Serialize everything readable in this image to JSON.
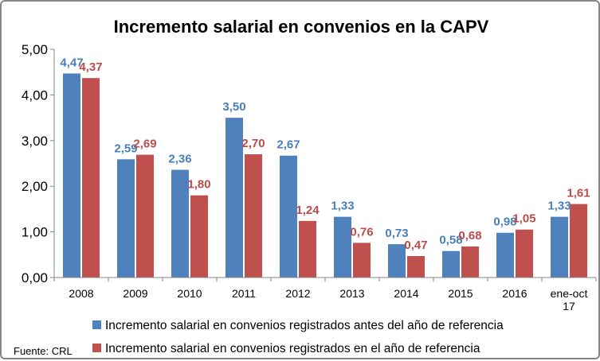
{
  "chart_data": {
    "type": "bar",
    "title": "Incremento salarial en convenios en la CAPV",
    "categories": [
      "2008",
      "2009",
      "2010",
      "2011",
      "2012",
      "2013",
      "2014",
      "2015",
      "2016",
      "ene-oct 17"
    ],
    "category_lines": [
      [
        "2008"
      ],
      [
        "2009"
      ],
      [
        "2010"
      ],
      [
        "2011"
      ],
      [
        "2012"
      ],
      [
        "2013"
      ],
      [
        "2014"
      ],
      [
        "2015"
      ],
      [
        "2016"
      ],
      [
        "ene-oct",
        "17"
      ]
    ],
    "series": [
      {
        "name": "Incremento salarial en convenios registrados antes del año de referencia",
        "color": "#4F81BD",
        "label_color": "#4A7EBB",
        "values": [
          4.47,
          2.59,
          2.36,
          3.5,
          2.67,
          1.33,
          0.73,
          0.58,
          0.98,
          1.33
        ],
        "labels": [
          "4,47",
          "2,59",
          "2,36",
          "3,50",
          "2,67",
          "1,33",
          "0,73",
          "0,58",
          "0,98",
          "1,33"
        ]
      },
      {
        "name": "Incremento salarial en convenios registrados en el año de referencia",
        "color": "#C0504D",
        "label_color": "#BE4B48",
        "values": [
          4.37,
          2.69,
          1.8,
          2.7,
          1.24,
          0.76,
          0.47,
          0.68,
          1.05,
          1.61
        ],
        "labels": [
          "4,37",
          "2,69",
          "1,80",
          "2,70",
          "1,24",
          "0,76",
          "0,47",
          "0,68",
          "1,05",
          "1,61"
        ]
      }
    ],
    "ylim": [
      0,
      5
    ],
    "yticks": [
      0,
      1,
      2,
      3,
      4,
      5
    ],
    "ytick_labels": [
      "0,00",
      "1,00",
      "2,00",
      "3,00",
      "4,00",
      "5,00"
    ],
    "grid": false,
    "legend_position": "bottom",
    "source": "Fuente: CRL",
    "xlabel": "",
    "ylabel": ""
  }
}
